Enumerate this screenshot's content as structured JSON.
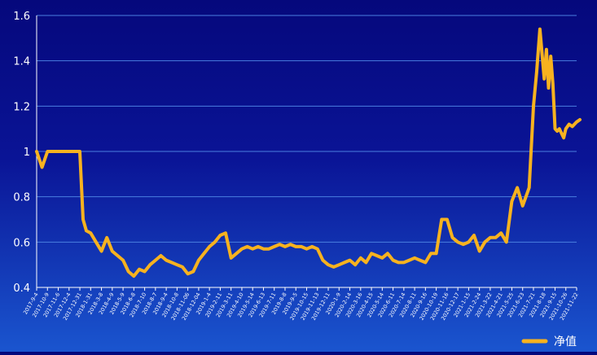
{
  "chart_data": {
    "type": "line",
    "title": "",
    "xlabel": "",
    "ylabel": "",
    "ylim": [
      0.4,
      1.6
    ],
    "yticks": [
      "0.4",
      "0.6",
      "0.8",
      "1",
      "1.2",
      "1.4",
      "1.6"
    ],
    "grid": true,
    "legend_position": "bottom-right",
    "colors": {
      "line": "#f7b21f",
      "grid": "#4a7fe0",
      "text": "#ffffff"
    },
    "xtick_labels": [
      "2017-9-4",
      "2017-10-9",
      "2017-11-6",
      "2017-12-4",
      "2017-12-31",
      "2018-1-31",
      "2018-3-8",
      "2018-4-9",
      "2018-5-9",
      "2018-6-8",
      "2018-7-10",
      "2018-8-7",
      "2018-9-4",
      "2018-10-8",
      "2018-11-06",
      "2018-12-04",
      "2019-1-4",
      "2019-2-11",
      "2019-3-11",
      "2019-4-10",
      "2019-5-14",
      "2019-6-13",
      "2019-7-11",
      "2019-8-8",
      "2019-9-5",
      "2019-10-15",
      "2019-11-13",
      "2019-12-11",
      "2020-1-9",
      "2020-2-14",
      "2020-3-16",
      "2020-4-15",
      "2020-5-14",
      "2020-6-11",
      "2020-7-14",
      "2020-8-11",
      "2020-9-16",
      "2020-10-19",
      "2020-11-16",
      "2020-12-17",
      "2021-1-15",
      "2021-2-24",
      "2021-3-22",
      "2021-4-21",
      "2021-5-25",
      "2021-6-23",
      "2021-7-21",
      "2021-8-18",
      "2021-9-15",
      "2021-10-26",
      "2021-11-22"
    ],
    "series": [
      {
        "name": "净值",
        "x": [
          0,
          0.5,
          1,
          1.5,
          2,
          2.5,
          3,
          3.5,
          4,
          4.3,
          4.6,
          5,
          5.5,
          6,
          6.5,
          7,
          7.5,
          8,
          8.5,
          9,
          9.5,
          10,
          10.5,
          11,
          11.5,
          12,
          12.5,
          13,
          13.5,
          14,
          14.5,
          15,
          15.5,
          16,
          16.5,
          17,
          17.5,
          18,
          18.5,
          19,
          19.5,
          20,
          20.5,
          21,
          21.5,
          22,
          22.5,
          23,
          23.5,
          24,
          24.5,
          25,
          25.5,
          26,
          26.5,
          27,
          27.5,
          28,
          28.5,
          29,
          29.5,
          30,
          30.5,
          31,
          31.5,
          32,
          32.5,
          33,
          33.5,
          34,
          34.5,
          35,
          35.5,
          36,
          36.5,
          37,
          37.5,
          38,
          38.5,
          39,
          39.5,
          40,
          40.5,
          41,
          41.5,
          42,
          42.5,
          43,
          43.5,
          44,
          44.5,
          45,
          45.3,
          45.6,
          46,
          46.3,
          46.6,
          47,
          47.2,
          47.4,
          47.6,
          47.8,
          48,
          48.2,
          48.4,
          48.6,
          48.8,
          49,
          49.3,
          49.6,
          50,
          50.3
        ],
        "values": [
          1.0,
          0.93,
          1.0,
          1.0,
          1.0,
          1.0,
          1.0,
          1.0,
          1.0,
          0.7,
          0.65,
          0.64,
          0.6,
          0.56,
          0.62,
          0.56,
          0.54,
          0.52,
          0.47,
          0.45,
          0.48,
          0.47,
          0.5,
          0.52,
          0.54,
          0.52,
          0.51,
          0.5,
          0.49,
          0.46,
          0.47,
          0.52,
          0.55,
          0.58,
          0.6,
          0.63,
          0.64,
          0.53,
          0.55,
          0.57,
          0.58,
          0.57,
          0.58,
          0.57,
          0.57,
          0.58,
          0.59,
          0.58,
          0.59,
          0.58,
          0.58,
          0.57,
          0.58,
          0.57,
          0.52,
          0.5,
          0.49,
          0.5,
          0.51,
          0.52,
          0.5,
          0.53,
          0.51,
          0.55,
          0.54,
          0.53,
          0.55,
          0.52,
          0.51,
          0.51,
          0.52,
          0.53,
          0.52,
          0.51,
          0.55,
          0.55,
          0.7,
          0.7,
          0.62,
          0.6,
          0.59,
          0.6,
          0.63,
          0.56,
          0.6,
          0.62,
          0.62,
          0.64,
          0.6,
          0.78,
          0.84,
          0.76,
          0.8,
          0.84,
          1.2,
          1.35,
          1.54,
          1.32,
          1.45,
          1.28,
          1.42,
          1.3,
          1.1,
          1.09,
          1.1,
          1.08,
          1.06,
          1.1,
          1.12,
          1.11,
          1.13,
          1.14
        ]
      }
    ]
  }
}
